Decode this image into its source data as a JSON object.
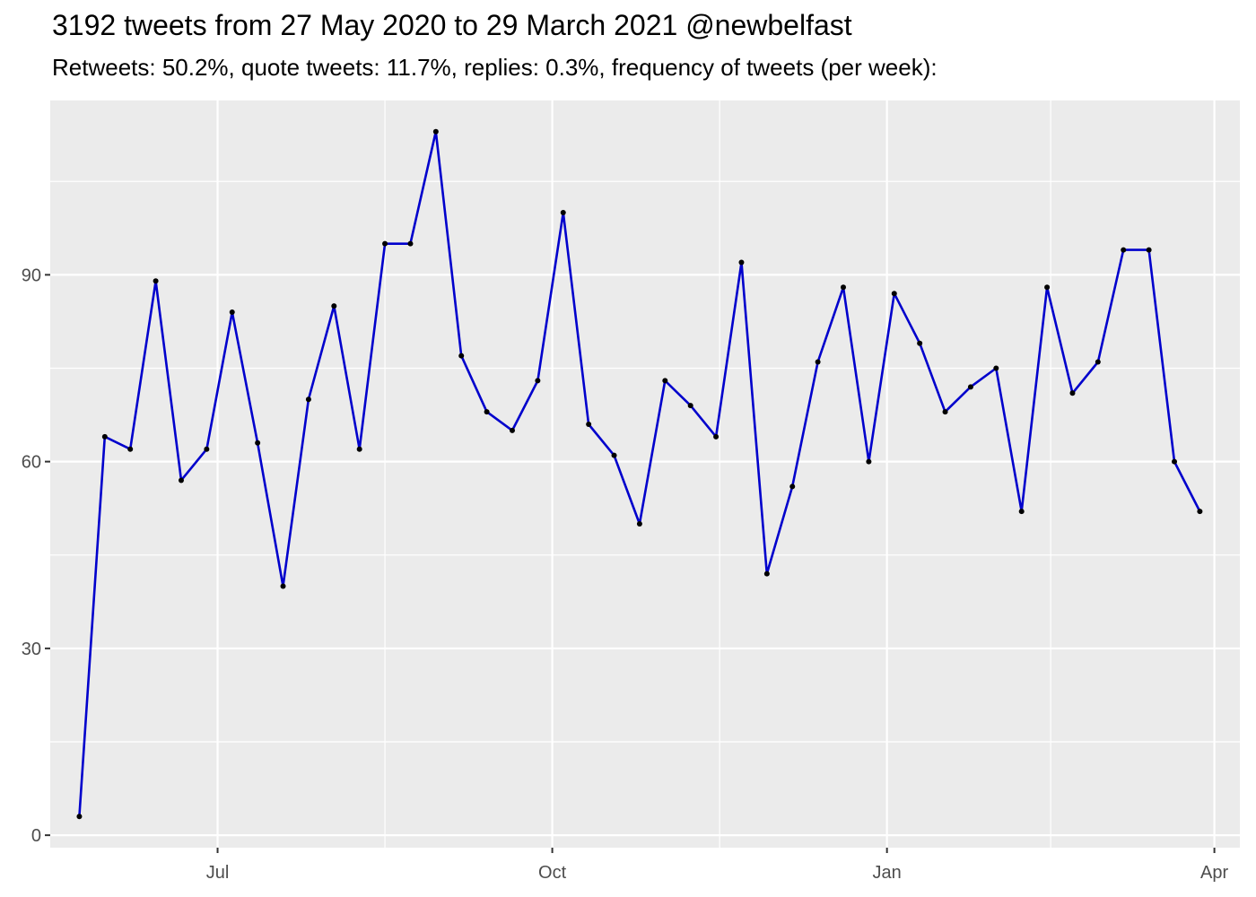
{
  "chart_data": {
    "type": "line",
    "title": "3192 tweets from 27 May 2020 to 29 March 2021 @newbelfast",
    "subtitle": "Retweets: 50.2%, quote tweets: 11.7%, replies: 0.3%, frequency of tweets (per week):",
    "xlabel": "",
    "ylabel": "",
    "x_ticks": [
      {
        "label": "Jul",
        "date": "2020-07-01"
      },
      {
        "label": "Oct",
        "date": "2020-10-01"
      },
      {
        "label": "Jan",
        "date": "2021-01-01"
      },
      {
        "label": "Apr",
        "date": "2021-04-01"
      }
    ],
    "y_ticks": [
      0,
      30,
      60,
      90
    ],
    "ylim": [
      -2,
      118
    ],
    "xlim": [
      "2020-05-16",
      "2021-04-08"
    ],
    "grid": true,
    "legend": "none",
    "series": [
      {
        "line_color": "#0000cc",
        "point_color": "#000000",
        "x": [
          "2020-05-24",
          "2020-05-31",
          "2020-06-07",
          "2020-06-14",
          "2020-06-21",
          "2020-06-28",
          "2020-07-05",
          "2020-07-12",
          "2020-07-19",
          "2020-07-26",
          "2020-08-02",
          "2020-08-09",
          "2020-08-16",
          "2020-08-23",
          "2020-08-30",
          "2020-09-06",
          "2020-09-13",
          "2020-09-20",
          "2020-09-27",
          "2020-10-04",
          "2020-10-11",
          "2020-10-18",
          "2020-10-25",
          "2020-11-01",
          "2020-11-08",
          "2020-11-15",
          "2020-11-22",
          "2020-11-29",
          "2020-12-06",
          "2020-12-13",
          "2020-12-20",
          "2020-12-27",
          "2021-01-03",
          "2021-01-10",
          "2021-01-17",
          "2021-01-24",
          "2021-01-31",
          "2021-02-07",
          "2021-02-14",
          "2021-02-21",
          "2021-02-28",
          "2021-03-07",
          "2021-03-14",
          "2021-03-21",
          "2021-03-28"
        ],
        "y": [
          3,
          64,
          62,
          89,
          57,
          62,
          84,
          63,
          40,
          70,
          85,
          62,
          95,
          95,
          113,
          77,
          68,
          65,
          73,
          100,
          66,
          61,
          50,
          73,
          69,
          64,
          92,
          42,
          56,
          76,
          88,
          60,
          87,
          79,
          68,
          72,
          75,
          52,
          88,
          71,
          76,
          94,
          94,
          60,
          52
        ]
      }
    ]
  }
}
